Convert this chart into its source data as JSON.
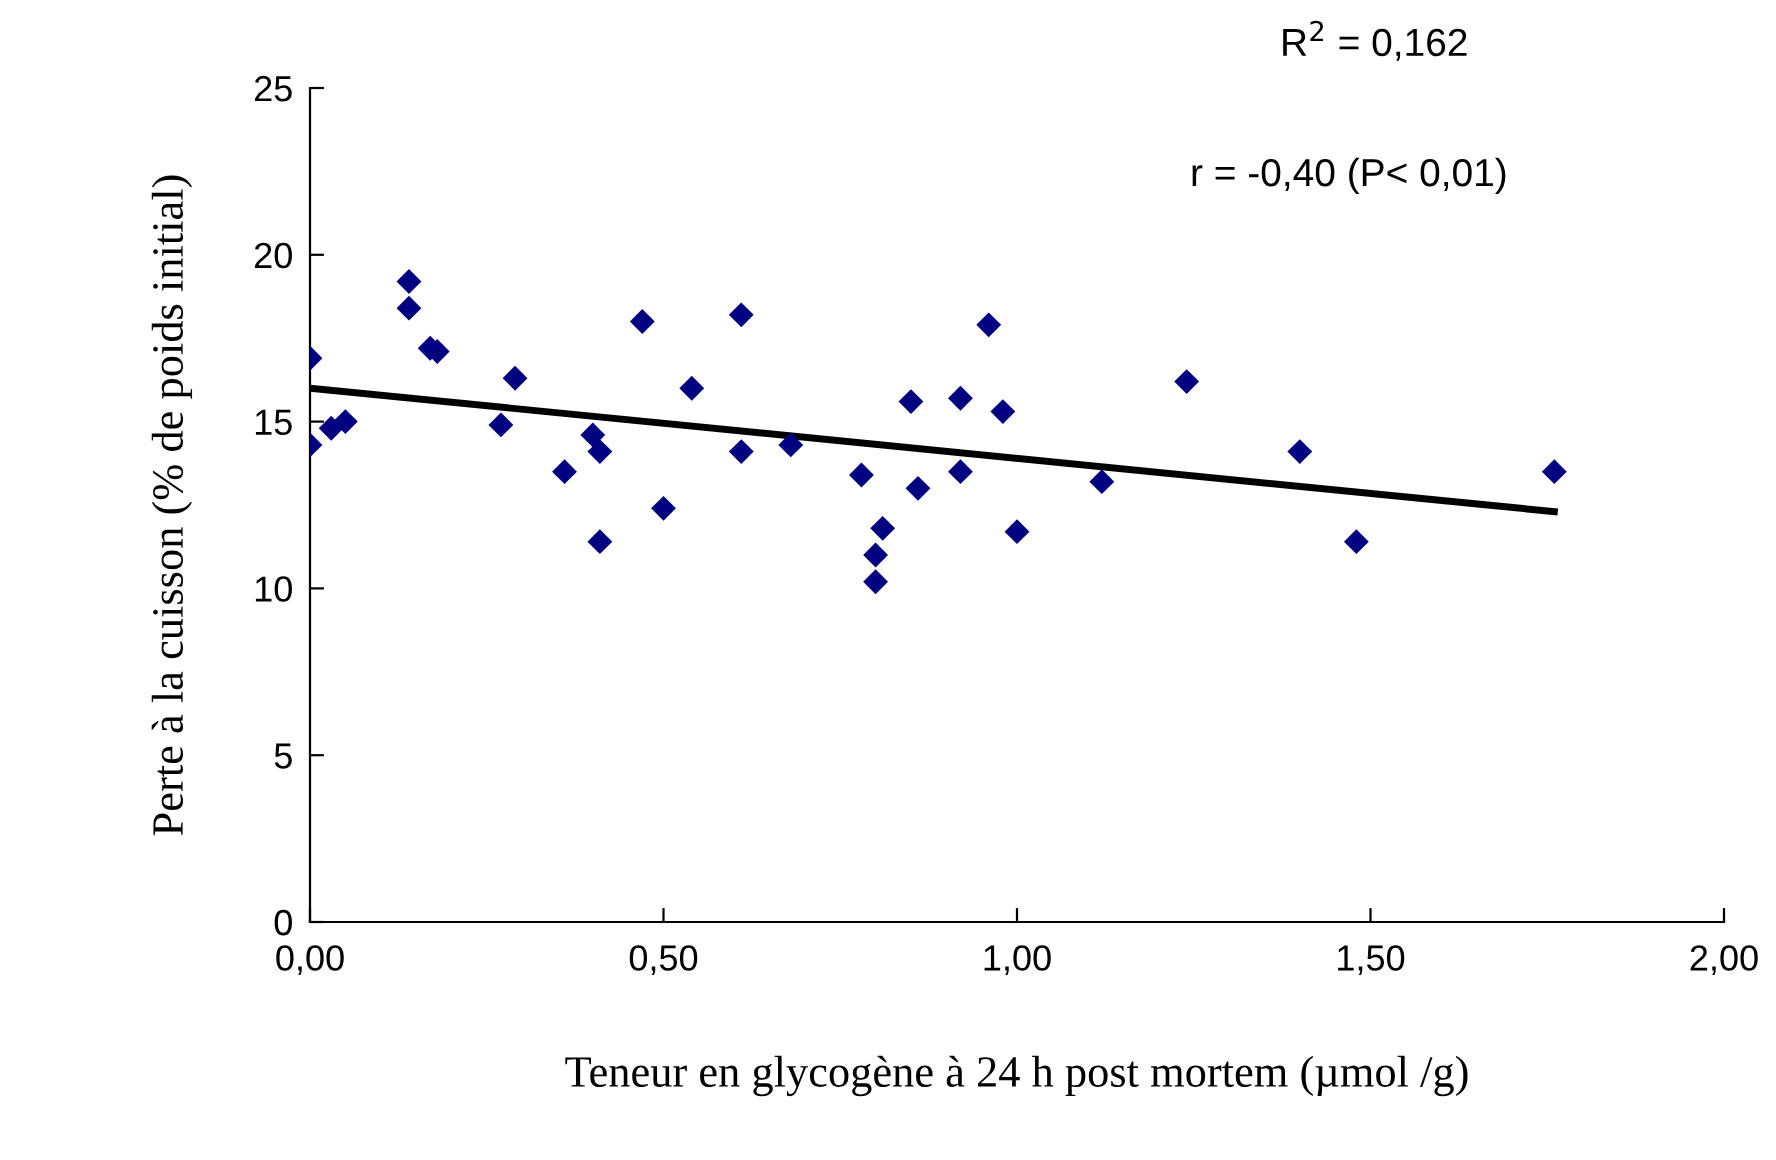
{
  "chart_data": {
    "type": "scatter",
    "xlabel": "Teneur en glycogène à 24 h post mortem (µmol /g)",
    "ylabel": "Perte à la cuisson (% de poids initial)",
    "annotations": [
      "R$^{2}$ = 0,162",
      "r = -0,40 (P< 0,01)"
    ],
    "series": [
      {
        "color": "#000080",
        "marker": "diamond",
        "x": [
          0.0,
          0.0,
          0.03,
          0.05,
          0.14,
          0.14,
          0.17,
          0.18,
          0.27,
          0.29,
          0.36,
          0.4,
          0.41,
          0.41,
          0.47,
          0.5,
          0.54,
          0.61,
          0.61,
          0.68,
          0.78,
          0.85,
          0.86,
          0.81,
          0.8,
          0.8,
          0.92,
          0.92,
          0.96,
          0.98,
          1.0,
          1.12,
          1.24,
          1.4,
          1.48,
          1.76
        ],
        "values": [
          16.9,
          14.3,
          14.8,
          15.0,
          19.2,
          18.4,
          17.2,
          17.1,
          14.9,
          16.3,
          13.5,
          14.6,
          14.1,
          11.4,
          18.0,
          12.4,
          16.0,
          18.2,
          14.1,
          14.3,
          13.4,
          15.6,
          13.0,
          11.8,
          11.0,
          10.2,
          13.5,
          15.7,
          17.9,
          15.3,
          11.7,
          13.2,
          16.2,
          14.1,
          11.4,
          13.5
        ]
      },
      {
        "type": "line",
        "color": "#000000",
        "marker": "none",
        "line_style": "solid",
        "x": [
          0.0,
          1.76
        ],
        "values": [
          16.0,
          12.3
        ]
      }
    ],
    "xlim": [
      0,
      2
    ],
    "ylim": [
      0,
      25
    ],
    "xticks": [
      {
        "value": 0,
        "label": "0,00"
      },
      {
        "value": 0.5,
        "label": "0,50"
      },
      {
        "value": 1,
        "label": "1,00"
      },
      {
        "value": 1.5,
        "label": "1,50"
      },
      {
        "value": 2,
        "label": "2,00"
      }
    ],
    "yticks": [
      0,
      5,
      10,
      15,
      20,
      25
    ],
    "grid": false,
    "legend": false
  }
}
